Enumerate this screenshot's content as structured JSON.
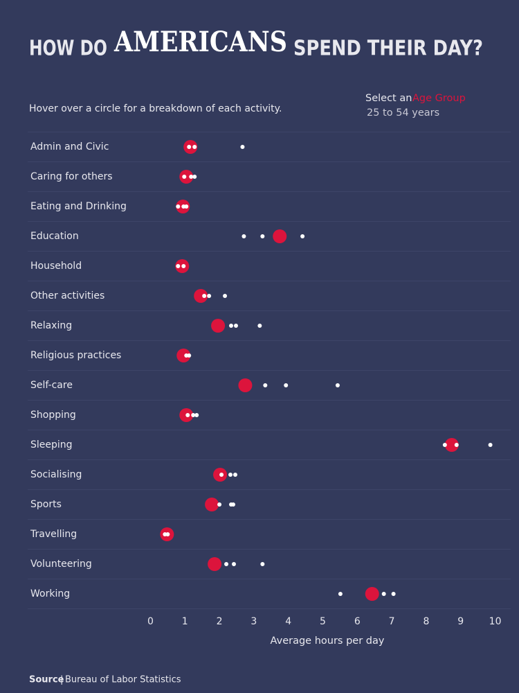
{
  "chart_data": {
    "type": "dot",
    "title": [
      "HOW DO",
      "AMERICANS",
      "SPEND THEIR DAY?"
    ],
    "subtitle": "Hover over a circle for a breakdown of each activity.",
    "selector": {
      "prompt": "Select an",
      "field": "Age Group"
    },
    "categories": [
      "Admin and Civic",
      "Caring for others",
      "Eating and Drinking",
      "Education",
      "Household",
      "Other activities",
      "Relaxing",
      "Religious practices",
      "Self-care",
      "Shopping",
      "Sleeping",
      "Socialising",
      "Sports",
      "Travelling",
      "Volunteering",
      "Working"
    ],
    "series": [
      {
        "name": "25 to 54 years",
        "color": "#dc143c",
        "values": [
          1.16,
          1.04,
          0.94,
          3.75,
          0.92,
          1.46,
          1.96,
          0.96,
          2.75,
          1.04,
          8.74,
          2.02,
          1.78,
          0.48,
          1.86,
          6.43
        ]
      },
      {
        "color": "#ffffff",
        "values": [
          1.12,
          0.98,
          0.8,
          2.71,
          0.8,
          1.56,
          2.34,
          1.04,
          3.33,
          1.08,
          8.54,
          2.06,
          2.0,
          0.42,
          2.2,
          5.51
        ]
      },
      {
        "color": "#ffffff",
        "values": [
          1.28,
          1.18,
          0.96,
          3.25,
          0.96,
          1.7,
          2.48,
          1.12,
          3.93,
          1.24,
          8.88,
          2.32,
          2.34,
          0.5,
          2.42,
          6.77
        ]
      },
      {
        "color": "#ffffff",
        "values": [
          2.67,
          1.28,
          1.04,
          4.41,
          null,
          2.16,
          3.17,
          null,
          5.43,
          1.34,
          9.86,
          2.46,
          2.4,
          null,
          3.25,
          7.05
        ]
      }
    ],
    "xlabel": "Average hours per day",
    "xlim": [
      -0.35,
      10.45
    ],
    "xticks": [
      0,
      1,
      2,
      3,
      4,
      5,
      6,
      7,
      8,
      9,
      10
    ],
    "source": {
      "label": "Source",
      "text": "Bureau of Labor Statistics"
    }
  }
}
